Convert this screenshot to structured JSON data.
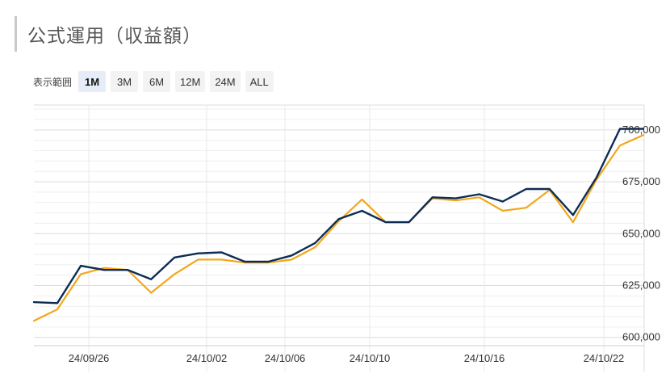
{
  "header": {
    "title": "公式運用（収益額）"
  },
  "range_selector": {
    "label": "表示範囲",
    "options": [
      "1M",
      "3M",
      "6M",
      "12M",
      "24M",
      "ALL"
    ],
    "selected": "1M"
  },
  "colors": {
    "line_primary": "#0d2c54",
    "line_secondary": "#f0a81c",
    "grid": "#e6e6e6"
  },
  "chart_data": {
    "type": "line",
    "x_tick_labels": [
      "24/09/26",
      "24/10/02",
      "24/10/06",
      "24/10/10",
      "24/10/16",
      "24/10/22"
    ],
    "y_tick_labels": [
      "600,000",
      "625,000",
      "650,000",
      "675,000",
      "700,000"
    ],
    "ylim": [
      596000,
      712000
    ],
    "grid": true,
    "series": [
      {
        "color": "#0d2c54",
        "values": [
          617000,
          616500,
          634500,
          632500,
          632500,
          628000,
          638500,
          640500,
          641000,
          636500,
          636500,
          639500,
          645500,
          657000,
          661000,
          655500,
          655500,
          667500,
          667000,
          669000,
          665500,
          671500,
          671500,
          659000,
          677000,
          700500,
          700500
        ]
      },
      {
        "color": "#f0a81c",
        "values": [
          608000,
          613500,
          630500,
          633500,
          632500,
          621500,
          630500,
          637500,
          637500,
          636000,
          636000,
          637500,
          643500,
          656000,
          666500,
          655500,
          655500,
          667000,
          666000,
          667500,
          661000,
          662500,
          671000,
          655500,
          676000,
          692500,
          697500
        ]
      }
    ]
  }
}
